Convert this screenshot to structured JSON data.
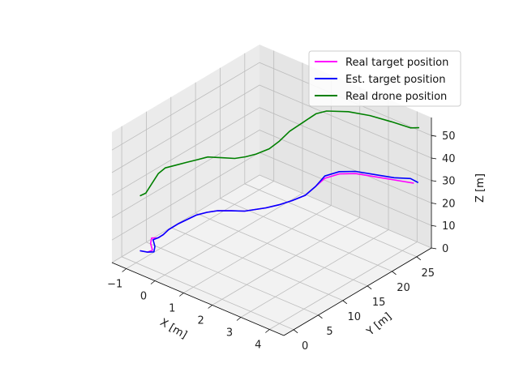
{
  "chart_data": {
    "type": "line3d",
    "xlabel": "X [m]",
    "ylabel": "Y [m]",
    "zlabel": "Z [m]",
    "xlim": [
      -1.5,
      4.5
    ],
    "ylim": [
      -2,
      28
    ],
    "zlim": [
      0,
      58
    ],
    "xticks": [
      -1,
      0,
      1,
      2,
      3,
      4
    ],
    "yticks": [
      0,
      5,
      10,
      15,
      20,
      25
    ],
    "zticks": [
      0,
      10,
      20,
      30,
      40,
      50
    ],
    "grid": true,
    "legend_position": "top-right",
    "series": [
      {
        "name": "Real target position",
        "color": "#ff00ff",
        "points": [
          [
            -0.9,
            0.3,
            5.5
          ],
          [
            -0.7,
            0.6,
            5.6
          ],
          [
            -0.6,
            1.0,
            6.5
          ],
          [
            -0.75,
            1.5,
            8.0
          ],
          [
            -0.8,
            2.0,
            9.5
          ],
          [
            -0.65,
            2.4,
            9.8
          ],
          [
            -0.6,
            3.2,
            10.5
          ],
          [
            -0.55,
            4.0,
            12.0
          ],
          [
            -0.4,
            5.0,
            14.0
          ],
          [
            -0.25,
            6.0,
            15.5
          ],
          [
            -0.1,
            7.0,
            17.0
          ],
          [
            0.1,
            8.0,
            18.0
          ],
          [
            0.3,
            9.0,
            18.5
          ],
          [
            0.6,
            10.0,
            18.8
          ],
          [
            0.9,
            11.0,
            19.0
          ],
          [
            1.1,
            12.0,
            19.5
          ],
          [
            1.3,
            13.0,
            20.0
          ],
          [
            1.5,
            14.5,
            20.5
          ],
          [
            1.7,
            16.0,
            21.5
          ],
          [
            1.9,
            17.5,
            23.0
          ],
          [
            2.0,
            19.0,
            25.5
          ],
          [
            2.1,
            20.3,
            28.0
          ],
          [
            2.4,
            21.5,
            30.0
          ],
          [
            2.8,
            22.5,
            31.0
          ],
          [
            3.3,
            23.5,
            31.0
          ],
          [
            3.8,
            24.5,
            31.0
          ],
          [
            4.3,
            25.5,
            31.0
          ]
        ]
      },
      {
        "name": "Est. target position",
        "color": "#0000ff",
        "points": [
          [
            -0.9,
            0.3,
            5.5
          ],
          [
            -0.7,
            0.6,
            5.6
          ],
          [
            -0.55,
            1.0,
            6.0
          ],
          [
            -0.6,
            1.5,
            7.5
          ],
          [
            -0.75,
            2.0,
            9.0
          ],
          [
            -0.65,
            2.5,
            9.8
          ],
          [
            -0.6,
            3.2,
            10.5
          ],
          [
            -0.55,
            4.0,
            12.0
          ],
          [
            -0.4,
            5.0,
            14.0
          ],
          [
            -0.25,
            6.0,
            15.5
          ],
          [
            -0.1,
            7.0,
            17.0
          ],
          [
            0.1,
            8.0,
            18.0
          ],
          [
            0.3,
            9.0,
            18.5
          ],
          [
            0.6,
            10.0,
            18.8
          ],
          [
            0.9,
            11.0,
            19.0
          ],
          [
            1.1,
            12.0,
            19.5
          ],
          [
            1.3,
            13.0,
            20.0
          ],
          [
            1.5,
            14.5,
            20.5
          ],
          [
            1.7,
            16.0,
            21.5
          ],
          [
            1.9,
            17.5,
            23.0
          ],
          [
            2.0,
            19.0,
            25.5
          ],
          [
            2.1,
            20.3,
            29.0
          ],
          [
            2.4,
            21.5,
            31.0
          ],
          [
            2.8,
            22.5,
            32.0
          ],
          [
            3.3,
            23.5,
            32.0
          ],
          [
            3.8,
            24.5,
            32.0
          ],
          [
            4.2,
            25.5,
            32.5
          ],
          [
            4.4,
            25.8,
            31.5
          ]
        ]
      },
      {
        "name": "Real drone position",
        "color": "#008000",
        "points": [
          [
            -0.9,
            0.3,
            30.0
          ],
          [
            -0.8,
            0.8,
            31.0
          ],
          [
            -0.7,
            1.5,
            35.0
          ],
          [
            -0.6,
            2.2,
            39.0
          ],
          [
            -0.5,
            3.0,
            41.0
          ],
          [
            -0.3,
            4.0,
            42.0
          ],
          [
            -0.1,
            5.0,
            43.0
          ],
          [
            0.1,
            6.0,
            44.0
          ],
          [
            0.3,
            7.0,
            45.0
          ],
          [
            0.6,
            8.0,
            45.0
          ],
          [
            0.9,
            9.0,
            45.0
          ],
          [
            1.1,
            10.0,
            45.5
          ],
          [
            1.3,
            11.0,
            46.5
          ],
          [
            1.5,
            12.5,
            48.0
          ],
          [
            1.6,
            14.0,
            50.0
          ],
          [
            1.7,
            15.5,
            53.0
          ],
          [
            1.9,
            17.0,
            56.0
          ],
          [
            2.1,
            18.5,
            59.0
          ],
          [
            2.3,
            19.5,
            60.0
          ],
          [
            2.8,
            21.0,
            60.5
          ],
          [
            3.3,
            22.5,
            59.5
          ],
          [
            3.8,
            24.0,
            57.5
          ],
          [
            4.2,
            25.5,
            55.0
          ],
          [
            4.4,
            26.0,
            55.5
          ]
        ]
      }
    ]
  }
}
